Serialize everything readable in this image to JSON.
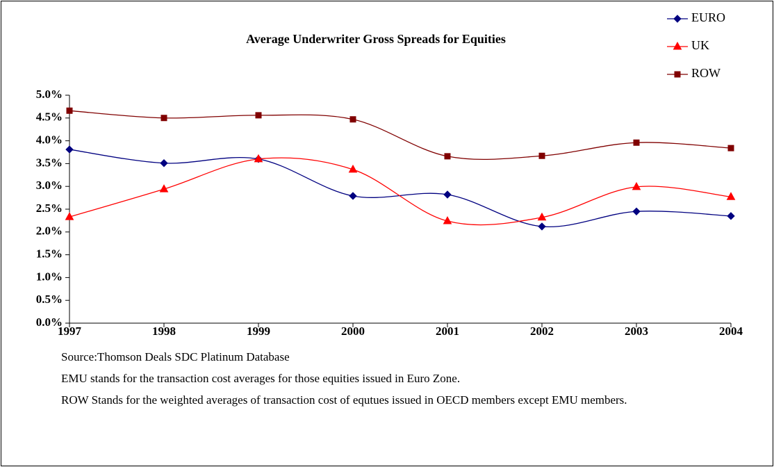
{
  "chart_data": {
    "type": "line",
    "title": "Average Underwriter Gross Spreads for Equities",
    "categories": [
      "1997",
      "1998",
      "1999",
      "2000",
      "2001",
      "2002",
      "2003",
      "2004"
    ],
    "series": [
      {
        "name": "EURO",
        "color": "#000080",
        "marker": "diamond",
        "values": [
          3.81,
          3.51,
          3.6,
          2.79,
          2.82,
          2.12,
          2.45,
          2.35
        ]
      },
      {
        "name": "UK",
        "color": "#ff0000",
        "marker": "triangle",
        "values": [
          2.33,
          2.94,
          3.6,
          3.37,
          2.24,
          2.32,
          2.99,
          2.77
        ]
      },
      {
        "name": "ROW",
        "color": "#800000",
        "marker": "square",
        "values": [
          4.66,
          4.5,
          4.56,
          4.47,
          3.66,
          3.67,
          3.96,
          3.84
        ]
      }
    ],
    "ylim": [
      0,
      5
    ],
    "yticks": [
      {
        "value": 0,
        "label": "0.0%"
      },
      {
        "value": 0.5,
        "label": "0.5%"
      },
      {
        "value": 1,
        "label": "1.0%"
      },
      {
        "value": 1.5,
        "label": "1.5%"
      },
      {
        "value": 2,
        "label": "2.0%"
      },
      {
        "value": 2.5,
        "label": "2.5%"
      },
      {
        "value": 3,
        "label": "3.0%"
      },
      {
        "value": 3.5,
        "label": "3.5%"
      },
      {
        "value": 4,
        "label": "4.0%"
      },
      {
        "value": 4.5,
        "label": "4.5%"
      },
      {
        "value": 5,
        "label": "5.0%"
      }
    ],
    "grid": false,
    "smooth": true,
    "legend": "top-right",
    "notes": [
      "Source:Thomson Deals SDC Platinum Database",
      "EMU stands for the transaction cost averages for those equities issued in Euro Zone.",
      "ROW Stands for the weighted averages of transaction cost of equtues issued in OECD members except EMU members."
    ]
  }
}
